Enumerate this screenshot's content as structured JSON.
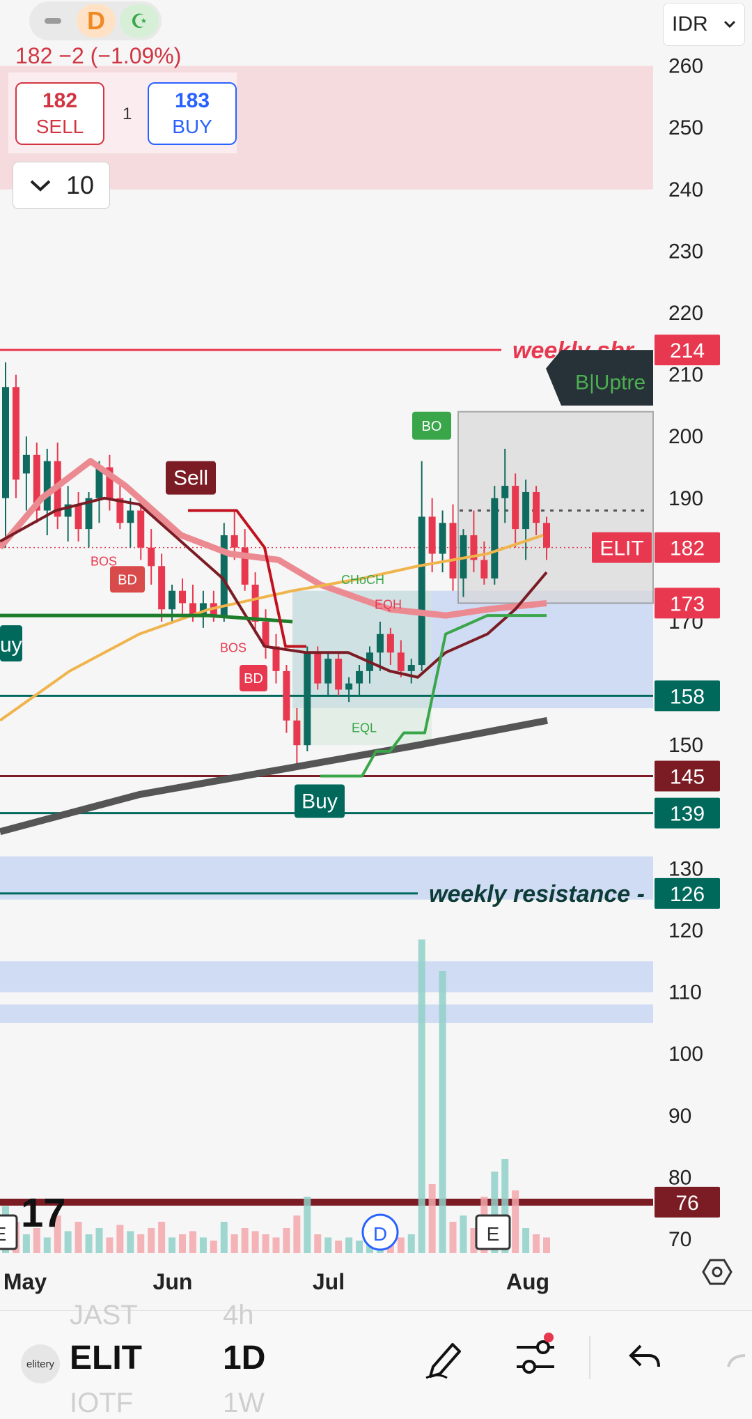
{
  "header": {
    "quote_text": "182  −2 (−1.09%)",
    "interval_icon_letter": "D",
    "sell_price": "182",
    "sell_label": "SELL",
    "buy_price": "183",
    "buy_label": "BUY",
    "quantity": "1",
    "interval_value": "10",
    "currency": "IDR"
  },
  "colors": {
    "up": "#26a69a",
    "down": "#ef5350",
    "red_label": "#e8384f",
    "teal_label": "#00695c",
    "maroon_label": "#7b1c24"
  },
  "chart_data": {
    "type": "candlestick",
    "symbol": "ELIT",
    "timeframe": "1D",
    "ylim": [
      66,
      266
    ],
    "yticks": [
      70,
      80,
      90,
      100,
      110,
      120,
      130,
      140,
      150,
      160,
      170,
      180,
      190,
      200,
      210,
      220,
      230,
      240,
      250,
      260
    ],
    "ytick_labels_shown": [
      "260",
      "250",
      "240",
      "230",
      "220",
      "210",
      "200",
      "190",
      "170",
      "150",
      "130",
      "120",
      "110",
      "100",
      "90",
      "80",
      "70"
    ],
    "xlabels": [
      "May",
      "Jun",
      "Jul",
      "Aug"
    ],
    "candles": [
      {
        "o": 190,
        "h": 212,
        "l": 182,
        "c": 208
      },
      {
        "o": 208,
        "h": 210,
        "l": 190,
        "c": 193
      },
      {
        "o": 194,
        "h": 200,
        "l": 188,
        "c": 197
      },
      {
        "o": 197,
        "h": 199,
        "l": 186,
        "c": 188
      },
      {
        "o": 188,
        "h": 198,
        "l": 184,
        "c": 196
      },
      {
        "o": 196,
        "h": 199,
        "l": 185,
        "c": 187
      },
      {
        "o": 187,
        "h": 192,
        "l": 183,
        "c": 189
      },
      {
        "o": 189,
        "h": 191,
        "l": 183,
        "c": 185
      },
      {
        "o": 185,
        "h": 191,
        "l": 182,
        "c": 190
      },
      {
        "o": 190,
        "h": 196,
        "l": 186,
        "c": 195
      },
      {
        "o": 195,
        "h": 197,
        "l": 188,
        "c": 190
      },
      {
        "o": 190,
        "h": 193,
        "l": 185,
        "c": 186
      },
      {
        "o": 186,
        "h": 190,
        "l": 182,
        "c": 188
      },
      {
        "o": 188,
        "h": 189,
        "l": 180,
        "c": 182
      },
      {
        "o": 182,
        "h": 185,
        "l": 176,
        "c": 179
      },
      {
        "o": 179,
        "h": 181,
        "l": 170,
        "c": 172
      },
      {
        "o": 172,
        "h": 176,
        "l": 170,
        "c": 175
      },
      {
        "o": 175,
        "h": 177,
        "l": 171,
        "c": 173
      },
      {
        "o": 173,
        "h": 176,
        "l": 170,
        "c": 171
      },
      {
        "o": 171,
        "h": 175,
        "l": 169,
        "c": 173
      },
      {
        "o": 173,
        "h": 175,
        "l": 170,
        "c": 171
      },
      {
        "o": 171,
        "h": 186,
        "l": 170,
        "c": 184
      },
      {
        "o": 184,
        "h": 188,
        "l": 180,
        "c": 182
      },
      {
        "o": 182,
        "h": 185,
        "l": 175,
        "c": 176
      },
      {
        "o": 176,
        "h": 178,
        "l": 168,
        "c": 170
      },
      {
        "o": 170,
        "h": 172,
        "l": 164,
        "c": 166
      },
      {
        "o": 166,
        "h": 168,
        "l": 160,
        "c": 162
      },
      {
        "o": 162,
        "h": 163,
        "l": 152,
        "c": 154
      },
      {
        "o": 154,
        "h": 156,
        "l": 146,
        "c": 150
      },
      {
        "o": 150,
        "h": 166,
        "l": 149,
        "c": 165
      },
      {
        "o": 165,
        "h": 166,
        "l": 159,
        "c": 160
      },
      {
        "o": 160,
        "h": 165,
        "l": 158,
        "c": 164
      },
      {
        "o": 164,
        "h": 165,
        "l": 158,
        "c": 159
      },
      {
        "o": 159,
        "h": 161,
        "l": 157,
        "c": 160
      },
      {
        "o": 160,
        "h": 163,
        "l": 158,
        "c": 162
      },
      {
        "o": 162,
        "h": 166,
        "l": 160,
        "c": 165
      },
      {
        "o": 165,
        "h": 170,
        "l": 162,
        "c": 168
      },
      {
        "o": 168,
        "h": 169,
        "l": 163,
        "c": 165
      },
      {
        "o": 165,
        "h": 167,
        "l": 161,
        "c": 162
      },
      {
        "o": 162,
        "h": 164,
        "l": 160,
        "c": 163
      },
      {
        "o": 163,
        "h": 196,
        "l": 162,
        "c": 187
      },
      {
        "o": 187,
        "h": 190,
        "l": 178,
        "c": 181
      },
      {
        "o": 181,
        "h": 188,
        "l": 178,
        "c": 186
      },
      {
        "o": 186,
        "h": 189,
        "l": 175,
        "c": 177
      },
      {
        "o": 177,
        "h": 185,
        "l": 174,
        "c": 184
      },
      {
        "o": 184,
        "h": 188,
        "l": 178,
        "c": 180
      },
      {
        "o": 180,
        "h": 183,
        "l": 176,
        "c": 177
      },
      {
        "o": 177,
        "h": 192,
        "l": 176,
        "c": 190
      },
      {
        "o": 190,
        "h": 198,
        "l": 186,
        "c": 192
      },
      {
        "o": 192,
        "h": 194,
        "l": 182,
        "c": 185
      },
      {
        "o": 185,
        "h": 193,
        "l": 180,
        "c": 191
      },
      {
        "o": 191,
        "h": 192,
        "l": 184,
        "c": 186
      },
      {
        "o": 186,
        "h": 187,
        "l": 180,
        "c": 182
      }
    ],
    "volume_relative": [
      0.15,
      0.1,
      0.06,
      0.08,
      0.05,
      0.12,
      0.07,
      0.1,
      0.06,
      0.08,
      0.05,
      0.09,
      0.07,
      0.06,
      0.08,
      0.1,
      0.05,
      0.06,
      0.07,
      0.05,
      0.04,
      0.1,
      0.06,
      0.08,
      0.07,
      0.06,
      0.05,
      0.08,
      0.12,
      0.18,
      0.06,
      0.05,
      0.04,
      0.05,
      0.04,
      0.06,
      0.05,
      0.04,
      0.05,
      0.06,
      1.0,
      0.22,
      0.9,
      0.1,
      0.12,
      0.08,
      0.18,
      0.26,
      0.3,
      0.2,
      0.08,
      0.06,
      0.05
    ],
    "price_labels": [
      {
        "value": 214,
        "text": "214",
        "color": "#e8384f"
      },
      {
        "value": 182,
        "text": "182",
        "color": "#e8384f",
        "tag": "ELIT"
      },
      {
        "value": 173,
        "text": "173",
        "color": "#e8384f"
      },
      {
        "value": 158,
        "text": "158",
        "color": "#00695c"
      },
      {
        "value": 145,
        "text": "145",
        "color": "#7b1c24"
      },
      {
        "value": 139,
        "text": "139",
        "color": "#00695c"
      },
      {
        "value": 126,
        "text": "126",
        "color": "#00695c"
      },
      {
        "value": 76,
        "text": "76",
        "color": "#7b1c24"
      }
    ],
    "annotations": {
      "weekly_sbr": "weekly sbr -",
      "weekly_resistance": "weekly resistance -",
      "trend_tag": "B|Uptre",
      "sell_marker": "Sell",
      "buy_marker": "Buy",
      "buy_marker_left": "uy",
      "bo": "BO",
      "bd": "BD",
      "bd2": "BD",
      "bos1": "BOS",
      "bos2": "BOS",
      "choch": "CHoCH",
      "eqh": "EQH",
      "eql": "EQL",
      "earnings": "E",
      "dividend": "D"
    }
  },
  "bottom": {
    "logo_text": "elitery",
    "symbol_prev": "JAST",
    "symbol": "ELIT",
    "symbol_next": "IOTF",
    "tf_prev": "4h",
    "timeframe": "1D",
    "tf_next": "1W"
  }
}
